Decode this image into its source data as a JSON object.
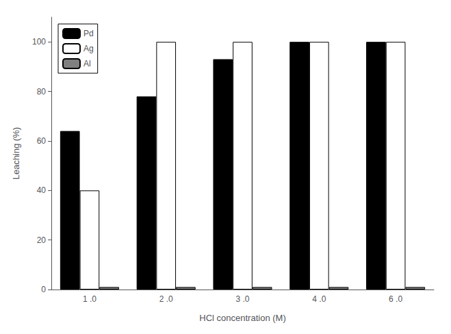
{
  "chart_data": {
    "type": "bar",
    "categories": [
      "1 .0",
      "2 .0",
      "3 .0",
      "4 .0",
      "6 .0"
    ],
    "series": [
      {
        "name": "Pd",
        "color": "#000000",
        "values": [
          64,
          78,
          93,
          100,
          100
        ]
      },
      {
        "name": "Ag",
        "color": "#ffffff",
        "values": [
          40,
          100,
          100,
          100,
          100
        ]
      },
      {
        "name": "Al",
        "color": "#808080",
        "values": [
          1,
          1,
          1,
          1,
          1
        ]
      }
    ],
    "xlabel": "HCl concentration (M)",
    "ylabel": "Leaching (%)",
    "ylim": [
      0,
      110
    ],
    "yticks": [
      0,
      20,
      40,
      60,
      80,
      100
    ],
    "grid": false,
    "legend": "upper left"
  }
}
